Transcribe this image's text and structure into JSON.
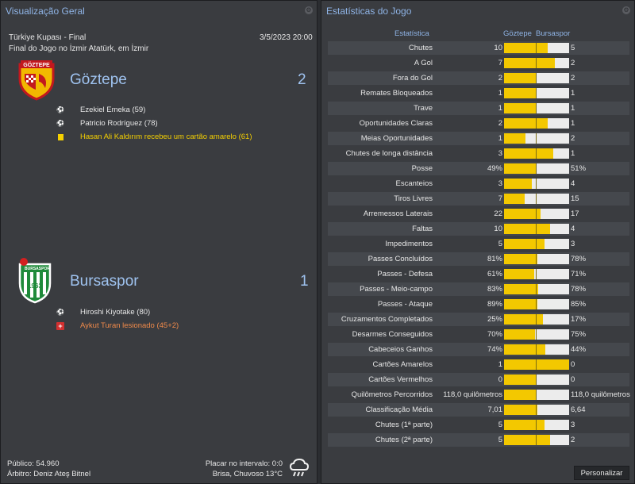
{
  "overview": {
    "title": "Visualização Geral",
    "competition": "Türkiye Kupası - Final",
    "datetime": "3/5/2023 20:00",
    "venue": "Final do Jogo no İzmir Atatürk, em İzmir",
    "home": {
      "badge_text": "GÖZTEPE",
      "name": "Göztepe",
      "score": "2",
      "events": [
        {
          "type": "goal",
          "text": "Ezekiel Emeka (59)"
        },
        {
          "type": "goal",
          "text": "Patricio Rodríguez (78)"
        },
        {
          "type": "yellow-card",
          "text": "Hasan Ali Kaldırım recebeu um cartão amarelo (61)"
        }
      ]
    },
    "away": {
      "badge_text": "BURSASPOR",
      "badge_year": "1963",
      "name": "Bursaspor",
      "score": "1",
      "events": [
        {
          "type": "goal",
          "text": "Hiroshi Kiyotake (80)"
        },
        {
          "type": "injury",
          "text": "Aykut Turan lesionado (45+2)"
        }
      ]
    },
    "attendance": "Público: 54.960",
    "referee": "Árbitro: Deniz Ateş Bitnel",
    "halftime": "Placar no intervalo: 0:0",
    "weather": "Brisa, Chuvoso 13°C",
    "weather_icon": "rain-cloud-icon"
  },
  "stats": {
    "title": "Estatísticas do Jogo",
    "header_stat": "Estatística",
    "header_home": "Göztepe",
    "header_away": "Bursaspor",
    "colors": {
      "home": "#f3c800",
      "away": "#ececec"
    },
    "rows": [
      {
        "label": "Chutes",
        "home": "10",
        "away": "5",
        "home_share": 0.67
      },
      {
        "label": "A Gol",
        "home": "7",
        "away": "2",
        "home_share": 0.78
      },
      {
        "label": "Fora do Gol",
        "home": "2",
        "away": "2",
        "home_share": 0.5
      },
      {
        "label": "Remates Bloqueados",
        "home": "1",
        "away": "1",
        "home_share": 0.5
      },
      {
        "label": "Trave",
        "home": "1",
        "away": "1",
        "home_share": 0.5
      },
      {
        "label": "Oportunidades Claras",
        "home": "2",
        "away": "1",
        "home_share": 0.67
      },
      {
        "label": "Meias Oportunidades",
        "home": "1",
        "away": "2",
        "home_share": 0.33
      },
      {
        "label": "Chutes de longa distância",
        "home": "3",
        "away": "1",
        "home_share": 0.75
      },
      {
        "label": "Posse",
        "home": "49%",
        "away": "51%",
        "home_share": 0.49
      },
      {
        "label": "Escanteios",
        "home": "3",
        "away": "4",
        "home_share": 0.43
      },
      {
        "label": "Tiros Livres",
        "home": "7",
        "away": "15",
        "home_share": 0.32
      },
      {
        "label": "Arremessos Laterais",
        "home": "22",
        "away": "17",
        "home_share": 0.56
      },
      {
        "label": "Faltas",
        "home": "10",
        "away": "4",
        "home_share": 0.71
      },
      {
        "label": "Impedimentos",
        "home": "5",
        "away": "3",
        "home_share": 0.62
      },
      {
        "label": "Passes Concluídos",
        "home": "81%",
        "away": "78%",
        "home_share": 0.51
      },
      {
        "label": "Passes - Defesa",
        "home": "61%",
        "away": "71%",
        "home_share": 0.46
      },
      {
        "label": "Passes - Meio-campo",
        "home": "83%",
        "away": "78%",
        "home_share": 0.52
      },
      {
        "label": "Passes - Ataque",
        "home": "89%",
        "away": "85%",
        "home_share": 0.51
      },
      {
        "label": "Cruzamentos Completados",
        "home": "25%",
        "away": "17%",
        "home_share": 0.6
      },
      {
        "label": "Desarmes Conseguidos",
        "home": "70%",
        "away": "75%",
        "home_share": 0.48
      },
      {
        "label": "Cabeceios Ganhos",
        "home": "74%",
        "away": "44%",
        "home_share": 0.63
      },
      {
        "label": "Cartões Amarelos",
        "home": "1",
        "away": "0",
        "home_share": 1.0
      },
      {
        "label": "Cartões Vermelhos",
        "home": "0",
        "away": "0",
        "home_share": 0.5
      },
      {
        "label": "Quilômetros Percorridos",
        "home": "118,0 quilômetros",
        "away": "118,0 quilômetros",
        "home_share": 0.5
      },
      {
        "label": "Classificação Média",
        "home": "7,01",
        "away": "6,64",
        "home_share": 0.51
      },
      {
        "label": "Chutes (1ª parte)",
        "home": "5",
        "away": "3",
        "home_share": 0.62
      },
      {
        "label": "Chutes (2ª parte)",
        "home": "5",
        "away": "2",
        "home_share": 0.71
      }
    ],
    "customize_label": "Personalizar"
  }
}
